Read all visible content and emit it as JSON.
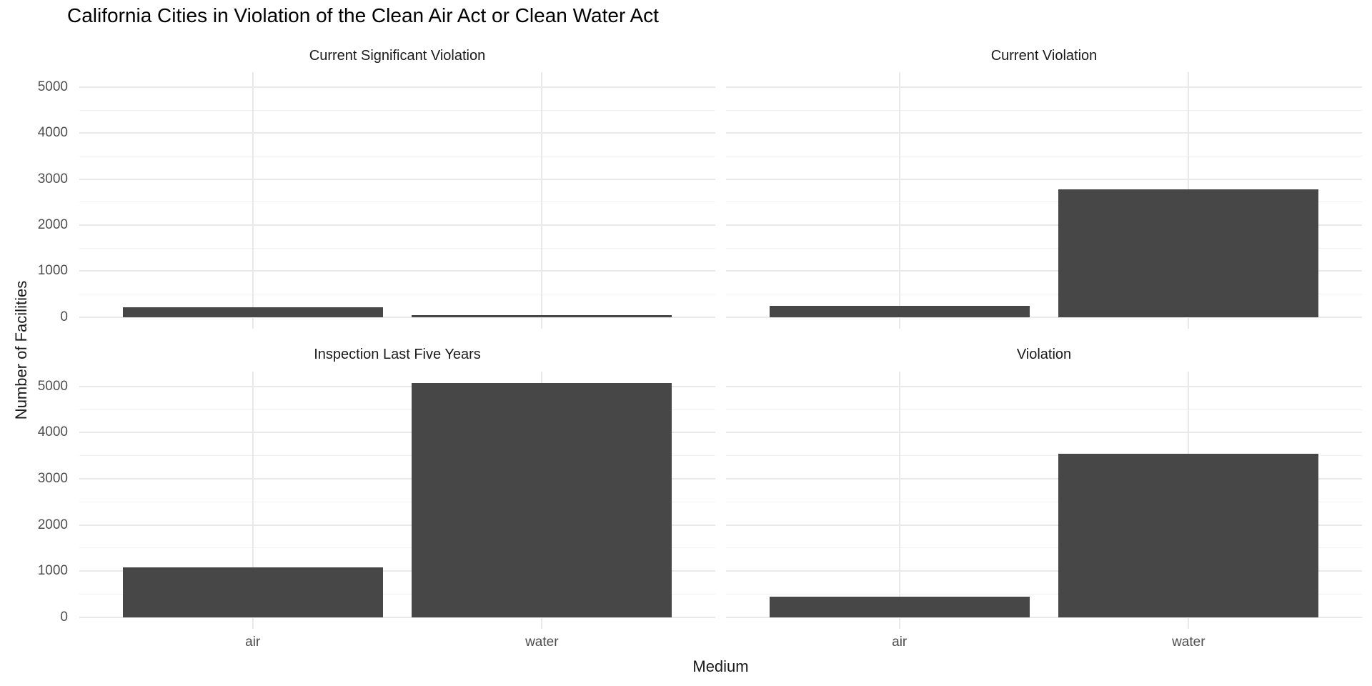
{
  "title": "California Cities in Violation of the Clean Air Act or Clean Water Act",
  "axes": {
    "x_label": "Medium",
    "y_label": "Number of Facilities",
    "y_ticks": [
      0,
      1000,
      2000,
      3000,
      4000,
      5000
    ],
    "x_categories": [
      "air",
      "water"
    ]
  },
  "colors": {
    "bar": "#474747",
    "grid_major": "#e9e9e9",
    "grid_minor": "#f2f2f2",
    "tick_text": "#4d4d4d",
    "title_text": "#000000",
    "strip_text": "#1a1a1a",
    "axis_title_text": "#1a1a1a",
    "background": "#ffffff"
  },
  "chart_data": {
    "type": "bar",
    "title": "California Cities in Violation of the Clean Air Act or Clean Water Act",
    "xlabel": "Medium",
    "ylabel": "Number of Facilities",
    "categories": [
      "air",
      "water"
    ],
    "ylim": [
      0,
      5331
    ],
    "grid": true,
    "legend": false,
    "layout": "2x2 facet grid, shared axes",
    "facets": [
      {
        "label": "Current Significant Violation",
        "values": [
          220,
          45
        ]
      },
      {
        "label": "Current Violation",
        "values": [
          250,
          2780
        ]
      },
      {
        "label": "Inspection Last Five Years",
        "values": [
          1080,
          5070
        ]
      },
      {
        "label": "Violation",
        "values": [
          440,
          3540
        ]
      }
    ]
  }
}
